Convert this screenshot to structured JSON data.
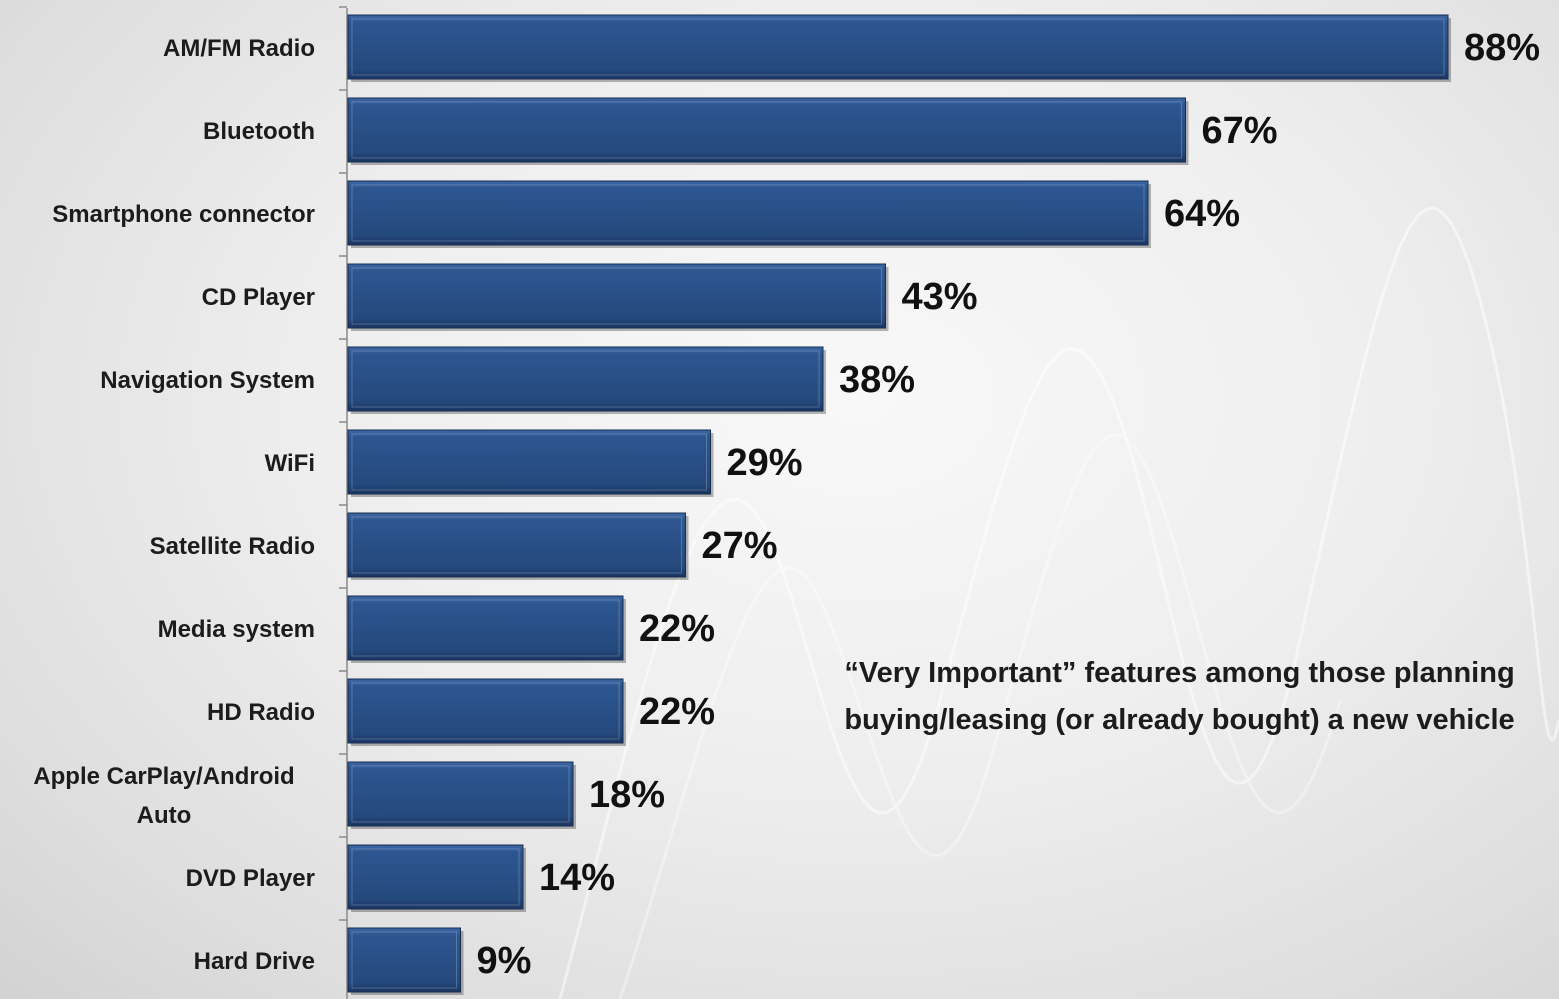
{
  "chart_data": {
    "type": "bar",
    "orientation": "horizontal",
    "categories": [
      "AM/FM Radio",
      "Bluetooth",
      "Smartphone connector",
      "CD Player",
      "Navigation System",
      "WiFi",
      "Satellite Radio",
      "Media system",
      "HD Radio",
      "Apple CarPlay/Android Auto",
      "DVD Player",
      "Hard Drive"
    ],
    "values": [
      88,
      67,
      64,
      43,
      38,
      29,
      27,
      22,
      22,
      18,
      14,
      9
    ],
    "data_labels": [
      "88%",
      "67%",
      "64%",
      "43%",
      "38%",
      "29%",
      "27%",
      "22%",
      "22%",
      "18%",
      "14%",
      "9%"
    ],
    "value_unit": "%",
    "xlim": [
      0,
      100
    ],
    "grid": false,
    "legend": "none",
    "bar_color": "#2a5189",
    "annotation_lines": [
      "“Very Important” features among those planning",
      "buying/leasing (or already bought) a new vehicle"
    ],
    "title": "",
    "xlabel": "",
    "ylabel": ""
  }
}
